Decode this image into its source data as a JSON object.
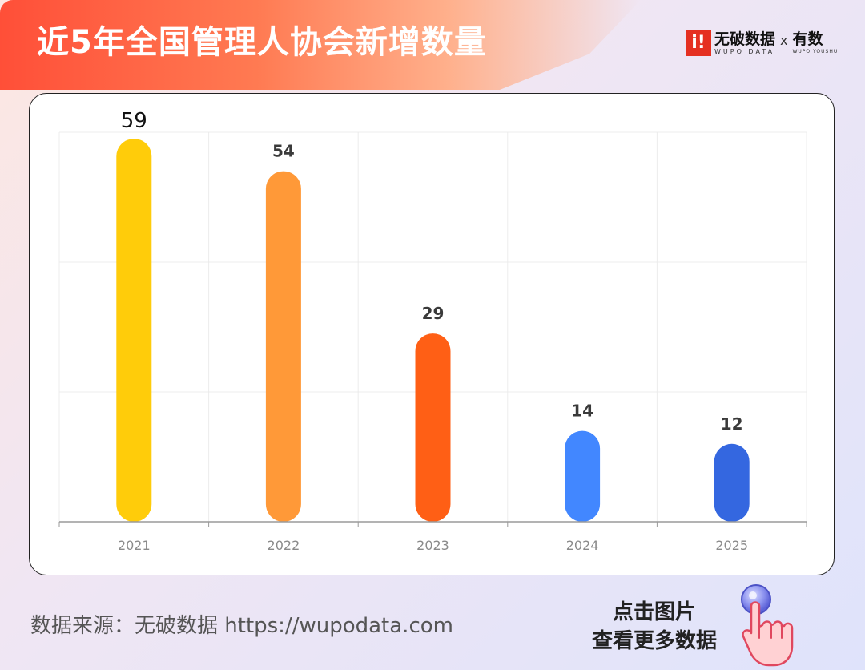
{
  "header": {
    "title": "近5年全国管理人协会新增数量"
  },
  "brand": {
    "logo_glyph": "i!",
    "name": "无破数据",
    "subtitle": "WUPO DATA",
    "separator": "x",
    "partner_name": "有数",
    "partner_subtitle": "WUPO YOUSHU"
  },
  "chart_data": {
    "type": "bar",
    "categories": [
      "2021",
      "2022",
      "2023",
      "2024",
      "2025"
    ],
    "values": [
      59,
      54,
      29,
      14,
      12
    ],
    "data_labels": [
      "59",
      "54",
      "29",
      "14",
      "12"
    ],
    "colors": [
      "#ffcc0a",
      "#ff9938",
      "#ff5f15",
      "#4287ff",
      "#3467e0"
    ],
    "title": "",
    "xlabel": "",
    "ylabel": "",
    "ylim": [
      0,
      60
    ],
    "grid": true
  },
  "footer": {
    "source": "数据来源：无破数据 https://wupodata.com",
    "cta_line1": "点击图片",
    "cta_line2": "查看更多数据"
  },
  "icons": {
    "hand": "pointing-hand-icon"
  }
}
